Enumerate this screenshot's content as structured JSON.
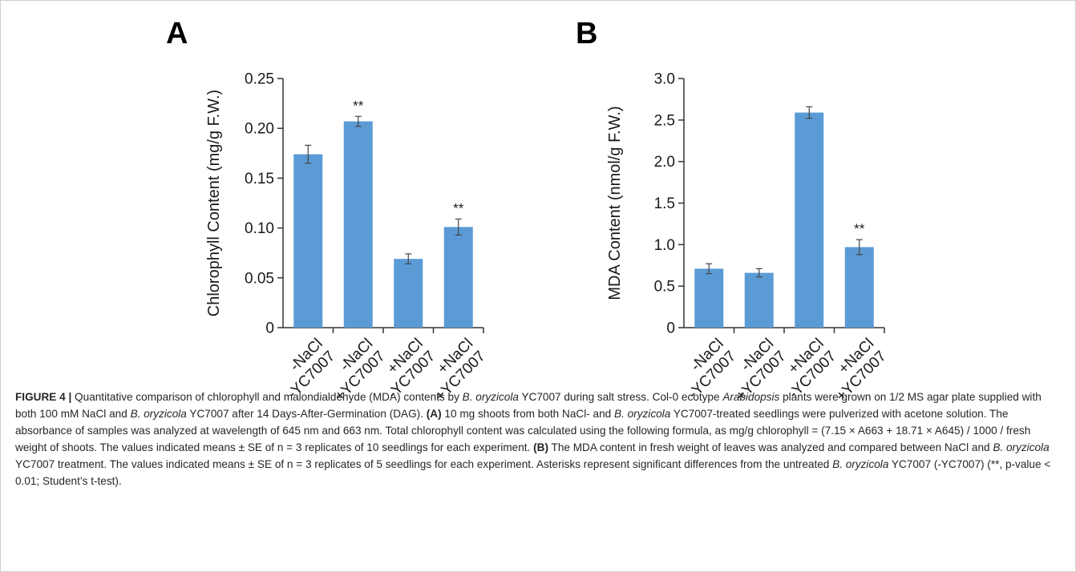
{
  "chart_data": [
    {
      "panel": "A",
      "type": "bar",
      "categories": [
        [
          "-NaCl",
          "-YC7007"
        ],
        [
          "-NaCl",
          "+YC7007"
        ],
        [
          "+NaCl",
          "-YC7007"
        ],
        [
          "+NaCl",
          "+YC7007"
        ]
      ],
      "values": [
        0.174,
        0.207,
        0.069,
        0.101
      ],
      "errors": [
        0.009,
        0.005,
        0.005,
        0.008
      ],
      "significance": [
        "",
        "**",
        "",
        "**"
      ],
      "ylabel": "Chlorophyll Content (mg/g F.W.)",
      "ylim": [
        0,
        0.25
      ],
      "yticks": [
        0,
        0.05,
        0.1,
        0.15,
        0.2,
        0.25
      ],
      "ytick_labels": [
        "0",
        "0.05",
        "0.10",
        "0.15",
        "0.20",
        "0.25"
      ],
      "bar_color": "#5b9bd5",
      "grid": false
    },
    {
      "panel": "B",
      "type": "bar",
      "categories": [
        [
          "-NaCl",
          "-YC7007"
        ],
        [
          "-NaCl",
          "+YC7007"
        ],
        [
          "+NaCl",
          "-YC7007"
        ],
        [
          "+NaCl",
          "+YC7007"
        ]
      ],
      "values": [
        0.71,
        0.66,
        2.59,
        0.97
      ],
      "errors": [
        0.06,
        0.05,
        0.07,
        0.09
      ],
      "significance": [
        "",
        "",
        "",
        "**"
      ],
      "ylabel": "MDA Content (nmol/g F.W.)",
      "ylim": [
        0,
        3.0
      ],
      "yticks": [
        0,
        0.5,
        1.0,
        1.5,
        2.0,
        2.5,
        3.0
      ],
      "ytick_labels": [
        "0",
        "0.5",
        "1.0",
        "1.5",
        "2.0",
        "2.5",
        "3.0"
      ],
      "bar_color": "#5b9bd5",
      "grid": false
    }
  ],
  "caption": {
    "label": "FIGURE 4 |",
    "segments": [
      {
        "t": " Quantitative comparison of chlorophyll and malondialdehyde (MDA) contents by "
      },
      {
        "t": "B. oryzicola",
        "s": "i"
      },
      {
        "t": " YC7007 during salt stress. Col-0 ecotype "
      },
      {
        "t": "Arabidopsis",
        "s": "i"
      },
      {
        "t": " plants were grown on 1/2 MS agar plate supplied with both 100 mM NaCl and "
      },
      {
        "t": "B. oryzicola",
        "s": "i"
      },
      {
        "t": " YC7007 after 14 Days-After-Germination (DAG). "
      },
      {
        "t": "(A)",
        "s": "b"
      },
      {
        "t": " 10 mg shoots from both NaCl- and "
      },
      {
        "t": "B. oryzicola",
        "s": "i"
      },
      {
        "t": " YC7007-treated seedlings were pulverized with acetone solution. The absorbance of samples was analyzed at wavelength of 645 nm and 663 nm. Total chlorophyll content was calculated using the following formula, as mg/g chlorophyll = (7.15 × A663 + 18.71 × A645) / 1000 / fresh weight of shoots. The values indicated means ± SE of n = 3 replicates of 10 seedlings for each experiment. "
      },
      {
        "t": "(B)",
        "s": "b"
      },
      {
        "t": " The MDA content in fresh weight of leaves was analyzed and compared between NaCl and "
      },
      {
        "t": "B. oryzicola",
        "s": "i"
      },
      {
        "t": " YC7007 treatment. The values indicated means ± SE of n = 3 replicates of 5 seedlings for each experiment. Asterisks represent significant differences from the untreated "
      },
      {
        "t": "B. oryzicola",
        "s": "i"
      },
      {
        "t": " YC7007 (-YC7007) (**, p-value < 0.01; Student’s t-test)."
      }
    ]
  }
}
